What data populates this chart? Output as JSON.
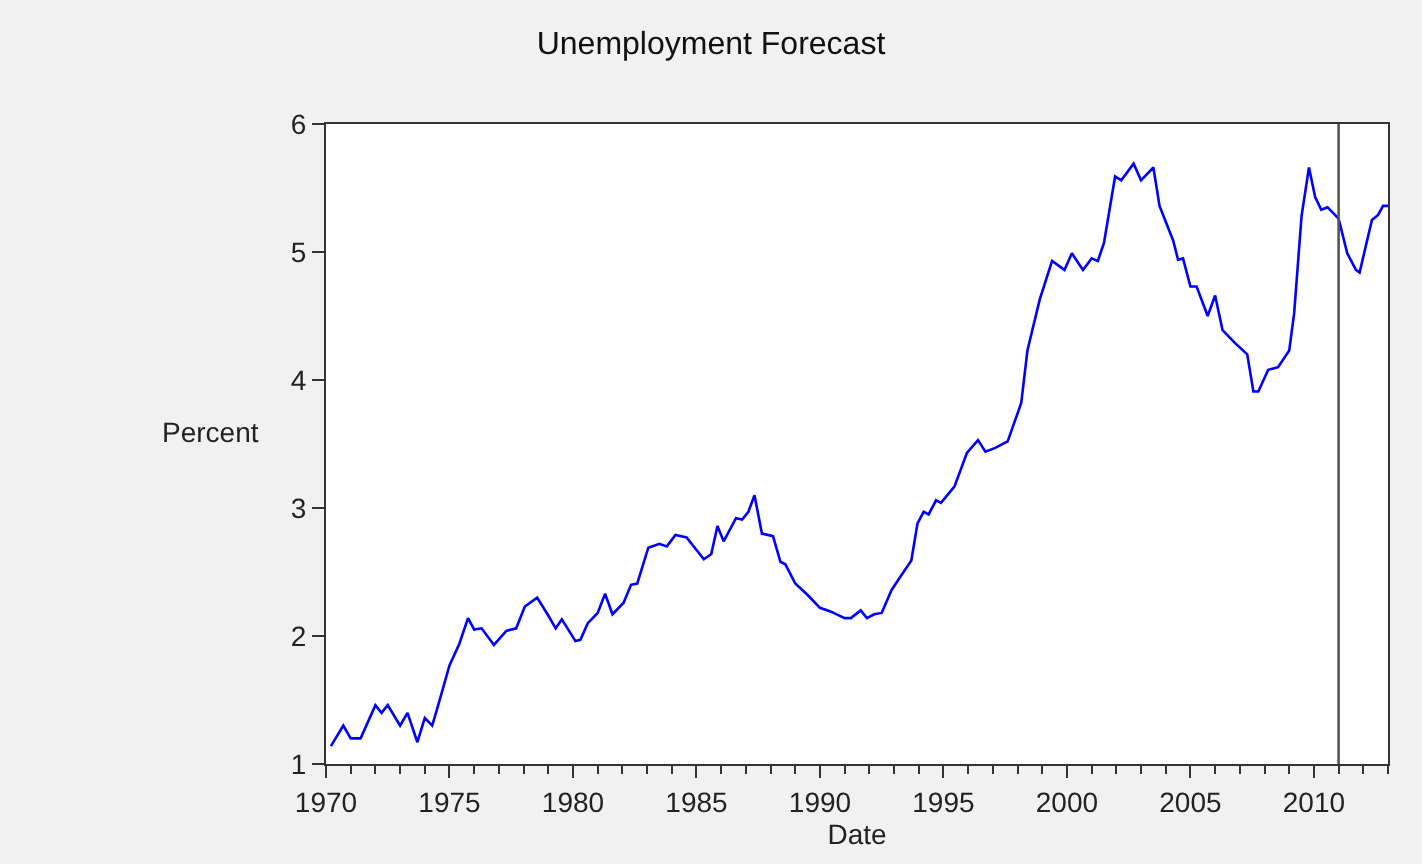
{
  "chart_data": {
    "type": "line",
    "title": "Unemployment Forecast",
    "xlabel": "Date",
    "ylabel": "Percent",
    "x": [
      1970.2,
      1970.7,
      1971.0,
      1971.4,
      1972.0,
      1972.25,
      1972.5,
      1973.0,
      1973.3,
      1973.7,
      1974.0,
      1974.3,
      1974.5,
      1975.0,
      1975.4,
      1975.75,
      1976.0,
      1976.3,
      1976.8,
      1977.3,
      1977.7,
      1978.05,
      1978.55,
      1979.0,
      1979.3,
      1979.55,
      1980.1,
      1980.3,
      1980.6,
      1981.0,
      1981.3,
      1981.6,
      1982.05,
      1982.35,
      1982.6,
      1983.05,
      1983.5,
      1983.8,
      1984.15,
      1984.6,
      1985.3,
      1985.6,
      1985.85,
      1986.1,
      1986.6,
      1986.85,
      1987.1,
      1987.35,
      1987.65,
      1988.1,
      1988.4,
      1988.6,
      1989.0,
      1989.5,
      1990.0,
      1990.45,
      1991.0,
      1991.25,
      1991.65,
      1991.9,
      1992.2,
      1992.5,
      1992.9,
      1993.35,
      1993.7,
      1993.95,
      1994.2,
      1994.4,
      1994.7,
      1994.9,
      1995.2,
      1995.45,
      1995.7,
      1995.95,
      1996.4,
      1996.7,
      1997.1,
      1997.6,
      1998.15,
      1998.4,
      1998.9,
      1999.4,
      1999.9,
      2000.2,
      2000.65,
      2001.0,
      2001.25,
      2001.5,
      2001.95,
      2002.2,
      2002.7,
      2003.0,
      2003.5,
      2003.75,
      2004.3,
      2004.5,
      2004.7,
      2005.0,
      2005.25,
      2005.7,
      2006.0,
      2006.3,
      2006.8,
      2007.3,
      2007.55,
      2007.75,
      2008.15,
      2008.55,
      2009.0,
      2009.2,
      2009.5,
      2009.8,
      2010.05,
      2010.3,
      2010.55,
      2011.0,
      2011.35,
      2011.7,
      2011.85,
      2012.35,
      2012.6,
      2012.8,
      2013.0
    ],
    "series": [
      {
        "color": "#0000ff",
        "values": [
          1.14,
          1.3,
          1.2,
          1.2,
          1.46,
          1.4,
          1.46,
          1.3,
          1.4,
          1.17,
          1.36,
          1.3,
          1.43,
          1.77,
          1.94,
          2.14,
          2.05,
          2.06,
          1.93,
          2.04,
          2.06,
          2.23,
          2.3,
          2.16,
          2.06,
          2.13,
          1.96,
          1.97,
          2.1,
          2.18,
          2.33,
          2.17,
          2.26,
          2.4,
          2.41,
          2.69,
          2.72,
          2.7,
          2.79,
          2.77,
          2.6,
          2.64,
          2.86,
          2.74,
          2.92,
          2.91,
          2.97,
          3.1,
          2.8,
          2.78,
          2.58,
          2.56,
          2.41,
          2.32,
          2.22,
          2.19,
          2.14,
          2.14,
          2.2,
          2.14,
          2.17,
          2.18,
          2.36,
          2.49,
          2.59,
          2.88,
          2.97,
          2.95,
          3.06,
          3.04,
          3.11,
          3.17,
          3.3,
          3.43,
          3.53,
          3.44,
          3.47,
          3.52,
          3.82,
          4.23,
          4.63,
          4.93,
          4.86,
          4.99,
          4.86,
          4.95,
          4.93,
          5.07,
          5.59,
          5.56,
          5.69,
          5.56,
          5.66,
          5.36,
          5.09,
          4.94,
          4.95,
          4.73,
          4.73,
          4.5,
          4.66,
          4.39,
          4.29,
          4.2,
          3.91,
          3.91,
          4.08,
          4.1,
          4.23,
          4.52,
          5.28,
          5.66,
          5.43,
          5.33,
          5.35,
          5.26,
          4.99,
          4.86,
          4.84,
          5.25,
          5.29,
          5.36,
          5.36
        ]
      }
    ],
    "xlim": [
      1970,
      2013
    ],
    "xticks": [
      1970,
      1975,
      1980,
      1985,
      1990,
      1995,
      2000,
      2005,
      2010
    ],
    "ylim": [
      1,
      6
    ],
    "yticks": [
      1,
      2,
      3,
      4,
      5,
      6
    ],
    "ref_lines": [
      {
        "axis": "x",
        "value": 2011,
        "color": "#555555"
      }
    ],
    "marker": "none",
    "line_style": "solid"
  }
}
